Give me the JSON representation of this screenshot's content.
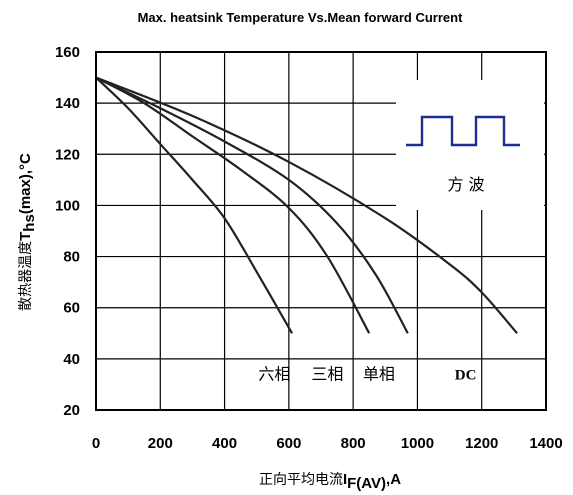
{
  "chart_data": {
    "type": "line",
    "title": "Max. heatsink Temperature Vs.Mean forward Current",
    "xlabel": {
      "prefix": "正向平均电流",
      "main": "I",
      "sub": "F(AV)",
      "suffix": ",A"
    },
    "ylabel": {
      "prefix": "散热器温度",
      "main": "T",
      "sub": "hs",
      "suffix": "(max),°C"
    },
    "xlim": [
      0,
      1400
    ],
    "ylim": [
      20,
      160
    ],
    "xticks": [
      "0",
      "200",
      "400",
      "600",
      "800",
      "1000",
      "1200",
      "1400"
    ],
    "yticks": [
      "20",
      "40",
      "60",
      "80",
      "100",
      "120",
      "140",
      "160"
    ],
    "grid": true,
    "series": [
      {
        "name": "六相",
        "points": [
          [
            0,
            150
          ],
          [
            100,
            138
          ],
          [
            200,
            124
          ],
          [
            300,
            110
          ],
          [
            400,
            95
          ],
          [
            500,
            74
          ],
          [
            610,
            50
          ]
        ]
      },
      {
        "name": "三相",
        "points": [
          [
            0,
            150
          ],
          [
            150,
            140
          ],
          [
            300,
            127
          ],
          [
            450,
            114
          ],
          [
            600,
            99
          ],
          [
            720,
            80
          ],
          [
            850,
            50
          ]
        ]
      },
      {
        "name": "单相",
        "points": [
          [
            0,
            150
          ],
          [
            200,
            138
          ],
          [
            400,
            125
          ],
          [
            600,
            110
          ],
          [
            750,
            93
          ],
          [
            870,
            73
          ],
          [
            970,
            50
          ]
        ]
      },
      {
        "name": "DC",
        "points": [
          [
            0,
            150
          ],
          [
            300,
            135
          ],
          [
            600,
            117
          ],
          [
            900,
            95
          ],
          [
            1100,
            77
          ],
          [
            1200,
            66
          ],
          [
            1310,
            50
          ]
        ]
      }
    ],
    "series_labels": [
      {
        "text": "六相",
        "x": 555,
        "y": 32
      },
      {
        "text": "三相",
        "x": 720,
        "y": 32
      },
      {
        "text": "单相",
        "x": 880,
        "y": 32
      },
      {
        "text": "DC",
        "x": 1150,
        "y": 32
      }
    ],
    "waveform": {
      "label": "方  波",
      "color": "#1f2f8f"
    }
  }
}
